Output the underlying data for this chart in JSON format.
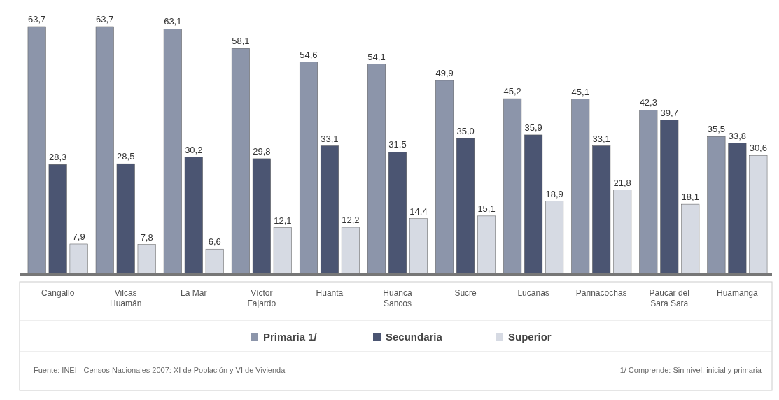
{
  "chart_data": {
    "type": "bar",
    "categories": [
      "Cangallo",
      "Vilcas Huamán",
      "La Mar",
      "Víctor Fajardo",
      "Huanta",
      "Huanca Sancos",
      "Sucre",
      "Lucanas",
      "Parinacochas",
      "Paucar del Sara Sara",
      "Huamanga"
    ],
    "series": [
      {
        "name": "Primaria 1/",
        "color": "#8c95aa",
        "values": [
          63.7,
          63.7,
          63.1,
          58.1,
          54.6,
          54.1,
          49.9,
          45.2,
          45.1,
          42.3,
          35.5
        ],
        "value_labels": [
          "63,7",
          "63,7",
          "63,1",
          "58,1",
          "54,6",
          "54,1",
          "49,9",
          "45,2",
          "45,1",
          "42,3",
          "35,5"
        ]
      },
      {
        "name": "Secundaria",
        "color": "#4b5572",
        "values": [
          28.3,
          28.5,
          30.2,
          29.8,
          33.1,
          31.5,
          35.0,
          35.9,
          33.1,
          39.7,
          33.8
        ],
        "value_labels": [
          "28,3",
          "28,5",
          "30,2",
          "29,8",
          "33,1",
          "31,5",
          "35,0",
          "35,9",
          "33,1",
          "39,7",
          "33,8"
        ]
      },
      {
        "name": "Superior",
        "color": "#d6dae3",
        "values": [
          7.9,
          7.8,
          6.6,
          12.1,
          12.2,
          14.4,
          15.1,
          18.9,
          21.8,
          18.1,
          30.6
        ],
        "value_labels": [
          "7,9",
          "7,8",
          "6,6",
          "12,1",
          "12,2",
          "14,4",
          "15,1",
          "18,9",
          "21,8",
          "18,1",
          "30,6"
        ]
      }
    ],
    "relative": false,
    "legend": "bottom",
    "annotations": [
      "Fuente: INEI - Censos Nacionales 2007: XI de Población y VI de Vivienda",
      "1/ Comprende: Sin nivel, inicial y primaria"
    ]
  }
}
